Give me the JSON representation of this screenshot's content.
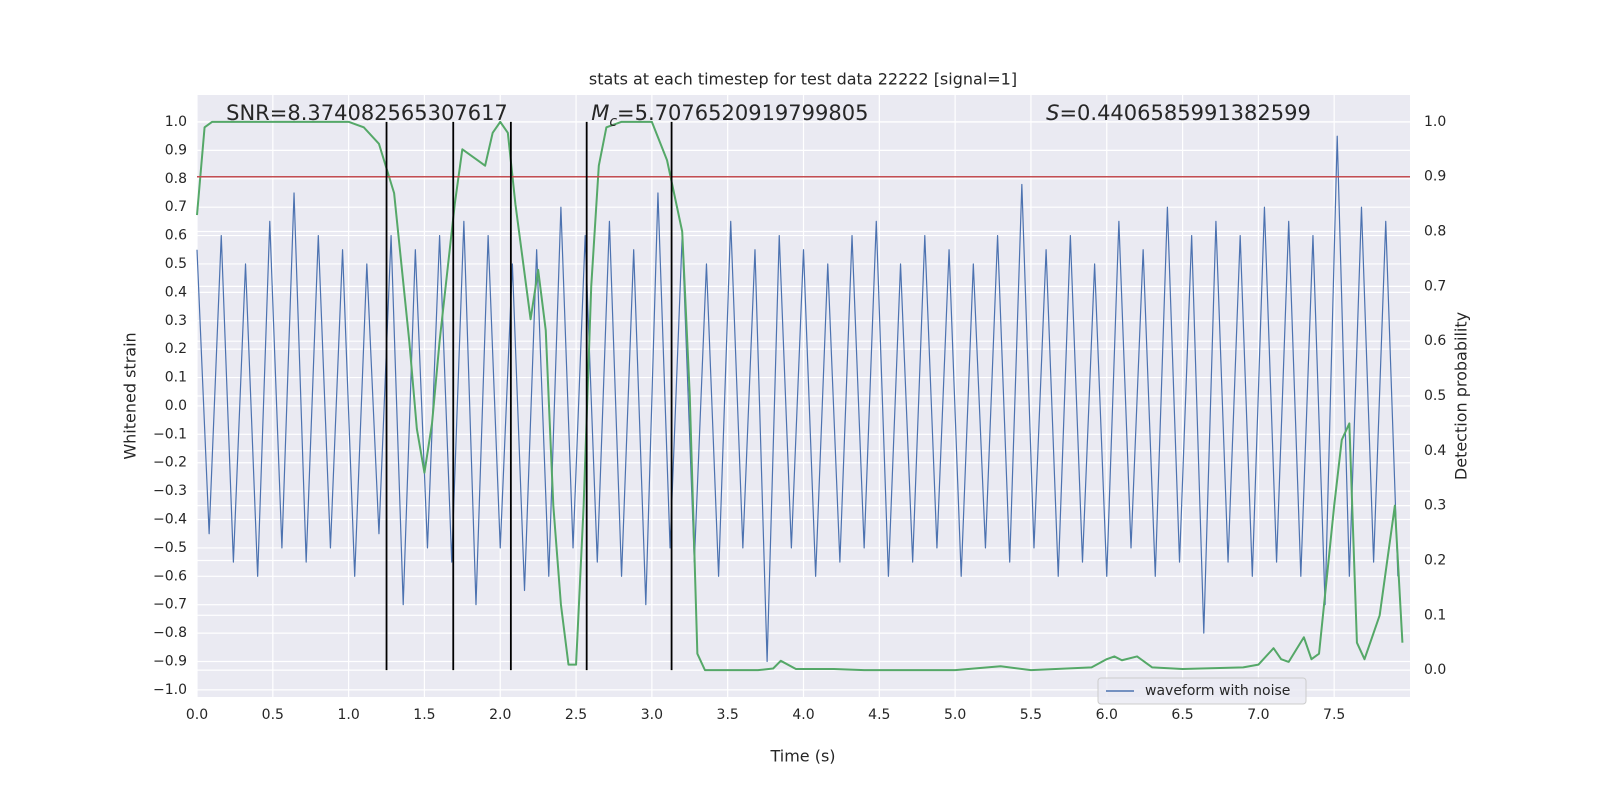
{
  "chart_data": {
    "type": "line",
    "title": "stats at each timestep for test data 22222 [signal=1]",
    "xlabel": "Time (s)",
    "ylabel": "Whitened strain",
    "y2label": "Detection probability",
    "xlim": [
      0,
      8
    ],
    "ylim": [
      -1.025,
      1.095
    ],
    "y2lim": [
      -0.049,
      1.049
    ],
    "xticks": [
      {
        "value": 0,
        "label": "0.0"
      },
      0.5,
      {
        "value": 1,
        "label": "1.0"
      },
      1.5,
      {
        "value": 2,
        "label": "2.0"
      },
      2.5,
      {
        "value": 3,
        "label": "3.0"
      },
      3.5,
      {
        "value": 4,
        "label": "4.0"
      },
      4.5,
      {
        "value": 5,
        "label": "5.0"
      },
      5.5,
      {
        "value": 6,
        "label": "6.0"
      },
      6.5,
      {
        "value": 7,
        "label": "7.0"
      },
      7.5
    ],
    "yticks": [
      {
        "value": -1,
        "label": "−1.0"
      },
      {
        "value": -0.9,
        "label": "−0.9"
      },
      {
        "value": -0.8,
        "label": "−0.8"
      },
      {
        "value": -0.7,
        "label": "−0.7"
      },
      {
        "value": -0.6,
        "label": "−0.6"
      },
      {
        "value": -0.5,
        "label": "−0.5"
      },
      {
        "value": -0.4,
        "label": "−0.4"
      },
      {
        "value": -0.3,
        "label": "−0.3"
      },
      {
        "value": -0.2,
        "label": "−0.2"
      },
      {
        "value": -0.1,
        "label": "−0.1"
      },
      {
        "value": 0,
        "label": "0.0"
      },
      0.1,
      0.2,
      0.3,
      0.4,
      0.5,
      0.6,
      0.7,
      0.8,
      0.9,
      {
        "value": 1,
        "label": "1.0"
      }
    ],
    "y2ticks": [
      {
        "value": 0,
        "label": "0.0"
      },
      0.1,
      0.2,
      0.3,
      0.4,
      0.5,
      0.6,
      0.7,
      0.8,
      0.9,
      {
        "value": 1,
        "label": "1.0"
      }
    ],
    "grid": true,
    "legend": "lower right",
    "annotations": [
      {
        "text": "SNR=8.374082565307617"
      },
      {
        "symbol": "M",
        "subscript": "c",
        "text": "=5.7076520919799805"
      },
      {
        "symbol": "S",
        "text": "=0.4406585991382599"
      }
    ],
    "series": [
      {
        "name": "waveform with noise",
        "color": "#4c72b0",
        "axis": "y",
        "x": [
          0,
          0.08,
          0.16,
          0.24,
          0.32,
          0.4,
          0.48,
          0.56,
          0.64,
          0.72,
          0.8,
          0.88,
          0.96,
          1.04,
          1.12,
          1.2,
          1.28,
          1.36,
          1.44,
          1.52,
          1.6,
          1.68,
          1.76,
          1.84,
          1.92,
          2.0,
          2.08,
          2.16,
          2.24,
          2.32,
          2.4,
          2.48,
          2.56,
          2.64,
          2.72,
          2.8,
          2.88,
          2.96,
          3.04,
          3.12,
          3.2,
          3.28,
          3.36,
          3.44,
          3.52,
          3.6,
          3.68,
          3.76,
          3.84,
          3.92,
          4.0,
          4.08,
          4.16,
          4.24,
          4.32,
          4.4,
          4.48,
          4.56,
          4.64,
          4.72,
          4.8,
          4.88,
          4.96,
          5.04,
          5.12,
          5.2,
          5.28,
          5.36,
          5.44,
          5.52,
          5.6,
          5.68,
          5.76,
          5.84,
          5.92,
          6.0,
          6.08,
          6.16,
          6.24,
          6.32,
          6.4,
          6.48,
          6.56,
          6.64,
          6.72,
          6.8,
          6.88,
          6.96,
          7.04,
          7.12,
          7.2,
          7.28,
          7.36,
          7.44,
          7.52,
          7.6,
          7.68,
          7.76,
          7.84,
          7.92
        ],
        "values": [
          0.55,
          -0.45,
          0.6,
          -0.55,
          0.5,
          -0.6,
          0.65,
          -0.5,
          0.75,
          -0.55,
          0.6,
          -0.5,
          0.55,
          -0.6,
          0.5,
          -0.45,
          0.6,
          -0.7,
          0.55,
          -0.5,
          0.6,
          -0.55,
          0.65,
          -0.7,
          0.6,
          -0.5,
          0.5,
          -0.65,
          0.55,
          -0.6,
          0.7,
          -0.5,
          0.6,
          -0.55,
          0.65,
          -0.6,
          0.55,
          -0.7,
          0.75,
          -0.5,
          0.6,
          -0.55,
          0.5,
          -0.6,
          0.65,
          -0.5,
          0.55,
          -0.9,
          0.6,
          -0.5,
          0.55,
          -0.6,
          0.5,
          -0.55,
          0.6,
          -0.5,
          0.65,
          -0.6,
          0.5,
          -0.55,
          0.6,
          -0.5,
          0.55,
          -0.6,
          0.5,
          -0.5,
          0.6,
          -0.55,
          0.78,
          -0.5,
          0.55,
          -0.6,
          0.6,
          -0.55,
          0.5,
          -0.6,
          0.65,
          -0.5,
          0.55,
          -0.6,
          0.7,
          -0.55,
          0.6,
          -0.8,
          0.65,
          -0.55,
          0.6,
          -0.6,
          0.7,
          -0.55,
          0.65,
          -0.6,
          0.6,
          -0.7,
          0.95,
          -0.6,
          0.7,
          -0.55,
          0.65,
          -0.6
        ]
      },
      {
        "color": "#55a868",
        "axis": "y2",
        "x": [
          0,
          0.05,
          0.1,
          0.2,
          0.4,
          0.6,
          0.8,
          1.0,
          1.1,
          1.2,
          1.3,
          1.4,
          1.45,
          1.5,
          1.55,
          1.6,
          1.7,
          1.75,
          1.85,
          1.9,
          1.95,
          2.0,
          2.05,
          2.1,
          2.2,
          2.25,
          2.3,
          2.35,
          2.4,
          2.45,
          2.5,
          2.55,
          2.6,
          2.65,
          2.7,
          2.8,
          3.0,
          3.1,
          3.2,
          3.25,
          3.3,
          3.35,
          3.5,
          3.7,
          3.8,
          3.85,
          3.95,
          4.2,
          4.4,
          4.6,
          5.0,
          5.3,
          5.5,
          5.9,
          6.0,
          6.05,
          6.1,
          6.2,
          6.3,
          6.5,
          6.9,
          7.0,
          7.1,
          7.15,
          7.2,
          7.3,
          7.35,
          7.4,
          7.5,
          7.55,
          7.6,
          7.65,
          7.7,
          7.8,
          7.9,
          7.95
        ],
        "values": [
          0.83,
          0.99,
          1.0,
          1.0,
          1.0,
          1.0,
          1.0,
          1.0,
          0.99,
          0.96,
          0.87,
          0.6,
          0.44,
          0.36,
          0.45,
          0.6,
          0.85,
          0.95,
          0.93,
          0.92,
          0.98,
          1.0,
          0.98,
          0.85,
          0.64,
          0.73,
          0.62,
          0.3,
          0.12,
          0.01,
          0.01,
          0.3,
          0.7,
          0.92,
          0.99,
          1.0,
          1.0,
          0.93,
          0.8,
          0.5,
          0.03,
          0.0,
          0.0,
          0.0,
          0.003,
          0.017,
          0.002,
          0.002,
          0.0,
          0.0,
          0.0,
          0.007,
          0.0,
          0.005,
          0.02,
          0.025,
          0.018,
          0.025,
          0.005,
          0.002,
          0.005,
          0.01,
          0.04,
          0.02,
          0.015,
          0.06,
          0.02,
          0.03,
          0.3,
          0.42,
          0.45,
          0.05,
          0.02,
          0.1,
          0.3,
          0.05
        ]
      }
    ],
    "hlines": [
      {
        "value": 0.9,
        "axis": "y2",
        "color": "#c44e52"
      }
    ],
    "vlines": {
      "x": [
        1.25,
        1.69,
        2.07,
        2.57,
        3.13
      ],
      "ymin": 0,
      "ymax": 1,
      "axis": "y2",
      "color": "#000000"
    }
  }
}
